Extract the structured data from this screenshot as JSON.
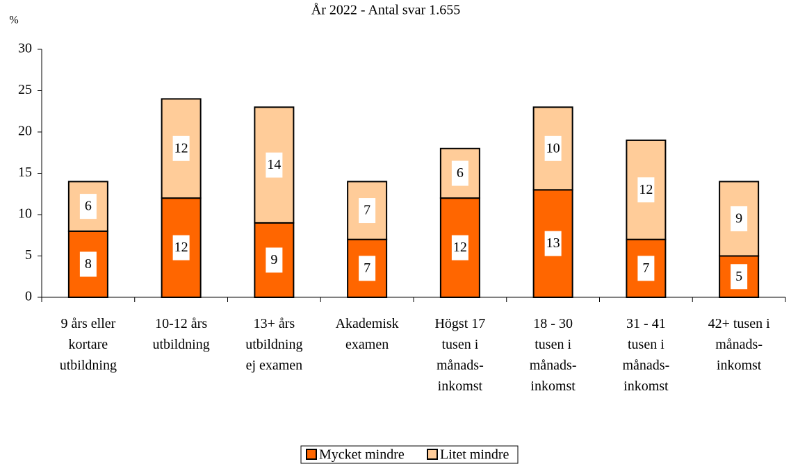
{
  "chart_data": {
    "type": "stacked_bar",
    "title": "År 2022 - Antal svar 1.655",
    "y_label": "%",
    "categories": [
      "9 års eller\nkortare\nutbildning",
      "10-12 års\nutbildning",
      "13+ års\nutbildning\nej examen",
      "Akademisk\nexamen",
      "Högst 17\ntusen i\nmånads-\ninkomst",
      "18 - 30\ntusen  i\nmånads-\ninkomst",
      "31 - 41\ntusen  i\nmånads-\ninkomst",
      "42+ tusen  i\nmånads-\ninkomst"
    ],
    "series": [
      {
        "name": "Mycket mindre",
        "color": "#ff6600",
        "values": [
          8,
          12,
          9,
          7,
          12,
          13,
          7,
          5
        ]
      },
      {
        "name": "Litet mindre",
        "color": "#ffcc99",
        "values": [
          6,
          12,
          14,
          7,
          6,
          10,
          12,
          9
        ]
      }
    ],
    "ylim": [
      0,
      30
    ],
    "yticks": [
      0,
      5,
      10,
      15,
      20,
      25,
      30
    ],
    "legend": "bottom"
  }
}
